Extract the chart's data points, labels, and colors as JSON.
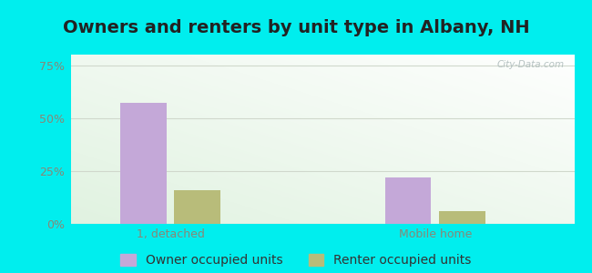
{
  "title": "Owners and renters by unit type in Albany, NH",
  "categories": [
    "1, detached",
    "Mobile home"
  ],
  "owner_values": [
    57,
    22
  ],
  "renter_values": [
    16,
    6
  ],
  "owner_color": "#c4a8d8",
  "renter_color": "#b8bc7a",
  "yticks": [
    0,
    25,
    50,
    75
  ],
  "ytick_labels": [
    "0%",
    "25%",
    "50%",
    "75%"
  ],
  "ylim": [
    0,
    80
  ],
  "bar_width": 0.35,
  "outer_bg": "#00eeee",
  "title_fontsize": 14,
  "tick_fontsize": 9,
  "legend_fontsize": 10,
  "watermark": "City-Data.com",
  "title_color": "#222222",
  "tick_color": "#888877",
  "grid_color": "#d0d8cc"
}
